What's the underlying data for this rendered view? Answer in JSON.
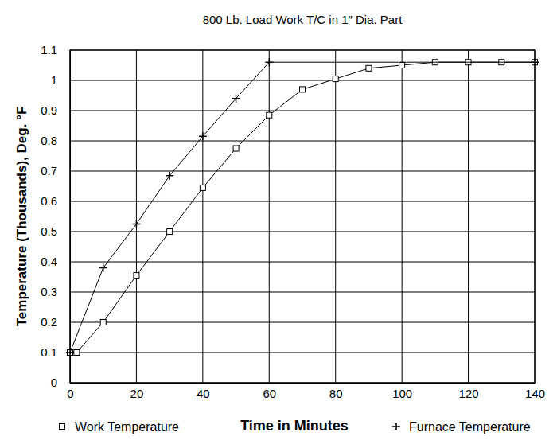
{
  "chart_data": {
    "type": "line",
    "title": "800 Lb. Load Work T/C in 1″ Dia. Part",
    "x_label": "Time in Minutes",
    "y_label": "Temperature (Thousands), Deg. °F",
    "xlim": [
      0,
      140
    ],
    "ylim": [
      0,
      1.1
    ],
    "xticks": [
      0,
      20,
      40,
      60,
      80,
      100,
      120,
      140
    ],
    "yticks": [
      0,
      0.1,
      0.2,
      0.3,
      0.4,
      0.5,
      0.6,
      0.7,
      0.8,
      0.9,
      1,
      1.1
    ],
    "grid": true,
    "legend": "bottom",
    "series": [
      {
        "name": "Work Temperature",
        "color": "#000000",
        "marker": "square",
        "line_style": "solid",
        "x": [
          0,
          2,
          10,
          20,
          30,
          40,
          50,
          60,
          70,
          80,
          90,
          100,
          110,
          120,
          130,
          140
        ],
        "values": [
          0.1,
          0.1,
          0.2,
          0.355,
          0.5,
          0.645,
          0.775,
          0.885,
          0.97,
          1.005,
          1.04,
          1.05,
          1.06,
          1.06,
          1.06,
          1.06
        ]
      },
      {
        "name": "Furnace Temperature",
        "color": "#000000",
        "marker": "plus",
        "line_style": "solid",
        "x": [
          0,
          10,
          20,
          30,
          40,
          50,
          60,
          140
        ],
        "values": [
          0.1,
          0.38,
          0.525,
          0.685,
          0.815,
          0.94,
          1.06,
          1.06
        ]
      }
    ]
  }
}
